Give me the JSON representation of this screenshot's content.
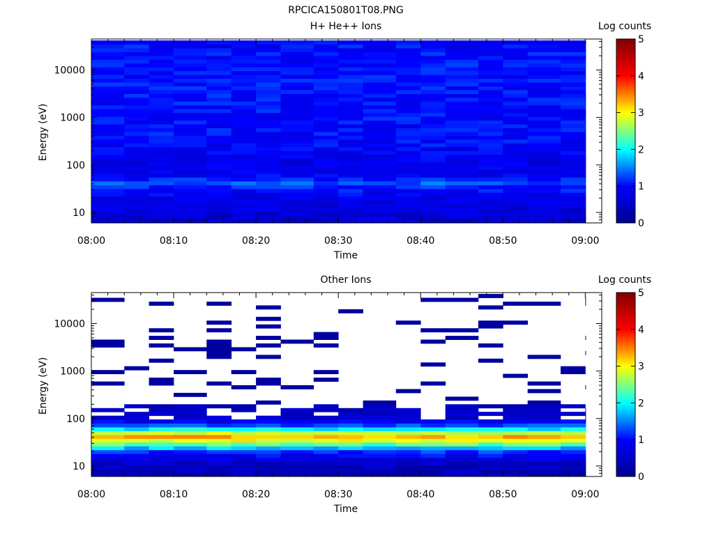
{
  "figure": {
    "filename": "RPCICA150801T08.PNG"
  },
  "colorbar": {
    "label": "Log counts",
    "ticks": [
      "0",
      "1",
      "2",
      "3",
      "4",
      "5"
    ],
    "range": [
      0,
      5
    ],
    "colormap": [
      "#00008f",
      "#0000ff",
      "#00ffff",
      "#ffff00",
      "#ff0000",
      "#800000"
    ]
  },
  "chart_data": [
    {
      "type": "heatmap",
      "title": "H+ He++ Ions",
      "xlabel": "Time",
      "ylabel": "Energy (eV)",
      "y_scale": "log",
      "x_ticks": [
        "08:00",
        "08:10",
        "08:20",
        "08:30",
        "08:40",
        "08:50",
        "09:00"
      ],
      "y_ticks": [
        "10",
        "100",
        "1000",
        "10000"
      ],
      "xlim": [
        "08:00",
        "09:02"
      ],
      "ylim": [
        6,
        45000
      ],
      "time_bins": [
        "08:00",
        "08:04",
        "08:07",
        "08:10",
        "08:14",
        "08:17",
        "08:20",
        "08:23",
        "08:27",
        "08:30",
        "08:33",
        "08:37",
        "08:40",
        "08:43",
        "08:47",
        "08:50",
        "08:53",
        "08:57",
        "09:00"
      ],
      "energy_profile": {
        "energy_eV": [
          8,
          12,
          20,
          35,
          40,
          60,
          100,
          300,
          1000,
          10000,
          40000
        ],
        "log_counts": [
          0.6,
          0.7,
          0.8,
          1.1,
          1.4,
          0.9,
          0.8,
          1.0,
          1.0,
          1.05,
          1.0
        ]
      }
    },
    {
      "type": "heatmap",
      "title": "Other Ions",
      "xlabel": "Time",
      "ylabel": "Energy (eV)",
      "y_scale": "log",
      "x_ticks": [
        "08:00",
        "08:10",
        "08:20",
        "08:30",
        "08:40",
        "08:50",
        "09:00"
      ],
      "y_ticks": [
        "10",
        "100",
        "1000",
        "10000"
      ],
      "xlim": [
        "08:00",
        "09:02"
      ],
      "ylim": [
        6,
        45000
      ],
      "time_bins": [
        "08:00",
        "08:04",
        "08:07",
        "08:10",
        "08:14",
        "08:17",
        "08:20",
        "08:23",
        "08:27",
        "08:30",
        "08:33",
        "08:37",
        "08:40",
        "08:43",
        "08:47",
        "08:50",
        "08:53",
        "08:57",
        "09:00"
      ],
      "energy_profile": {
        "energy_eV": [
          8,
          12,
          20,
          30,
          40,
          50,
          70,
          100,
          160,
          300,
          1000,
          10000
        ],
        "log_counts": [
          0.4,
          0.5,
          1.2,
          2.5,
          3.4,
          2.8,
          1.3,
          0.6,
          0.4,
          0.3,
          0.2,
          0.2
        ]
      }
    }
  ]
}
